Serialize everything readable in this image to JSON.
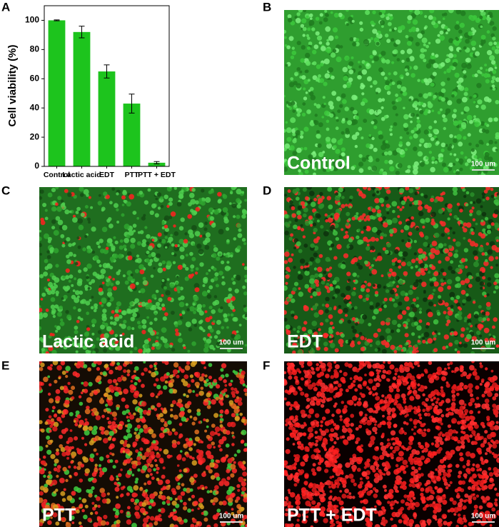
{
  "chart_data": {
    "type": "bar",
    "panel_label": "A",
    "y_label": "Cell viability (%)",
    "categories": [
      "Control",
      "Lactic acid",
      "EDT",
      "PTT",
      "PTT + EDT"
    ],
    "values": [
      100,
      92,
      65,
      43,
      2.5
    ],
    "errors": [
      0.3,
      4,
      4.5,
      6.5,
      0.8
    ],
    "color": "#1dc41d",
    "ylim": [
      0,
      110
    ],
    "yticks": [
      0,
      20,
      40,
      60,
      80,
      100
    ]
  },
  "panels": [
    {
      "letter": "B",
      "label": "Control",
      "scale": "100 um"
    },
    {
      "letter": "C",
      "label": "Lactic acid",
      "scale": "100 um"
    },
    {
      "letter": "D",
      "label": "EDT",
      "scale": "100 um"
    },
    {
      "letter": "E",
      "label": "PTT",
      "scale": "100 um"
    },
    {
      "letter": "F",
      "label": "PTT + EDT",
      "scale": "100 um"
    }
  ]
}
